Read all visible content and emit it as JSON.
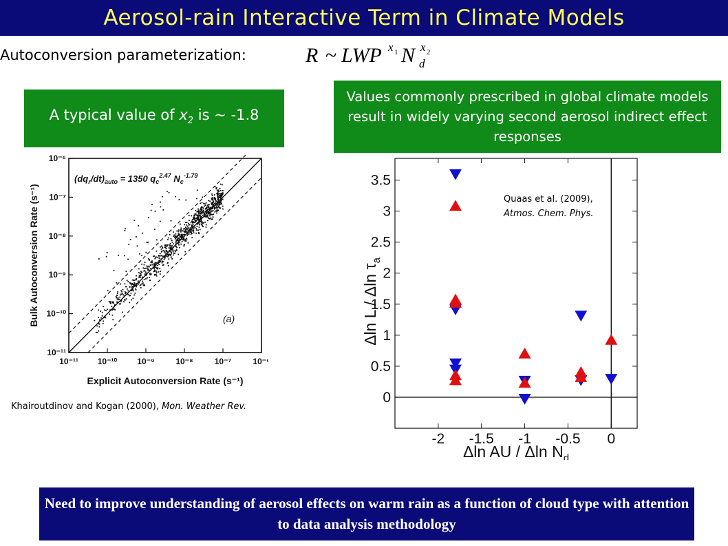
{
  "title": "Aerosol-rain Interactive Term in Climate Models",
  "autoconversion_label": "Autoconversion parameterization:",
  "formula": {
    "lhs": "R",
    "op": "~",
    "lwp": "LWP",
    "x1": "x",
    "x1_sub": "1",
    "n": "N",
    "n_sub": "d",
    "x2": "x",
    "x2_sub": "2"
  },
  "left_box": {
    "text_pre": "A typical value of ",
    "var": "x",
    "sub": "2",
    "text_post": " is ~ -1.8"
  },
  "right_box": {
    "text": "Values commonly prescribed in global climate models result in widely varying second aerosol indirect effect responses"
  },
  "left_caption": {
    "authors": "Khairoutdinov and Kogan (2000), ",
    "journal": "Mon. Weather Rev."
  },
  "quaas": {
    "line1": "Quaas et al. (2009),",
    "line2": "Atmos. Chem. Phys."
  },
  "bottom_text": "Need to improve understanding of aerosol effects on warm rain as a function of cloud type with attention to data analysis methodology",
  "colors": {
    "title_bg": "#0a0a78",
    "title_text": "#ffff55",
    "green": "#108a18",
    "red": "#e01010",
    "blue": "#1010d0"
  },
  "chart_data": [
    {
      "type": "scatter",
      "title": "(dq_r/dt)_auto = 1350 q_c^2.47 N_c^-1.79",
      "panel_label": "(a)",
      "xlabel": "Explicit Autoconversion Rate (s⁻¹)",
      "ylabel": "Bulk Autoconversion Rate (s⁻¹)",
      "xscale": "log",
      "yscale": "log",
      "xlim": [
        1e-11,
        1e-06
      ],
      "ylim": [
        1e-11,
        1e-06
      ],
      "x_ticks": [
        "10⁻¹¹",
        "10⁻¹⁰",
        "10⁻⁹",
        "10⁻⁸",
        "10⁻⁷",
        "10⁻⁶"
      ],
      "y_ticks": [
        "10⁻⁶",
        "10⁻⁷",
        "10⁻⁸",
        "10⁻⁹",
        "10⁻¹⁰",
        "10⁻¹¹"
      ],
      "lines": [
        "1:1 (solid)",
        "factor-of-2 bounds (dashed)"
      ]
    },
    {
      "type": "scatter",
      "xlabel": "Δln AU / Δln N_d",
      "ylabel": "Δln L / Δln τ_a",
      "xlim": [
        -2.5,
        0.3
      ],
      "ylim": [
        -0.5,
        3.85
      ],
      "x_ticks": [
        "-2",
        "-1.5",
        "-1",
        "-0.5",
        "0"
      ],
      "y_ticks": [
        "0",
        "0.5",
        "1",
        "1.5",
        "2",
        "2.5",
        "3",
        "3.5"
      ],
      "series": [
        {
          "marker": "triangle-down",
          "color": "#1010d0",
          "points": [
            [
              -1.8,
              3.6
            ],
            [
              -1.8,
              1.42
            ],
            [
              -1.8,
              0.55
            ],
            [
              -1.8,
              0.45
            ],
            [
              -1.0,
              0.27
            ],
            [
              -1.0,
              -0.02
            ],
            [
              -0.35,
              1.32
            ],
            [
              -0.35,
              0.28
            ],
            [
              0.0,
              0.3
            ]
          ]
        },
        {
          "marker": "triangle-up",
          "color": "#e01010",
          "points": [
            [
              -1.8,
              3.08
            ],
            [
              -1.8,
              1.57
            ],
            [
              -1.8,
              1.52
            ],
            [
              -1.8,
              0.35
            ],
            [
              -1.8,
              0.27
            ],
            [
              -1.0,
              0.7
            ],
            [
              -1.0,
              0.23
            ],
            [
              -0.35,
              0.4
            ],
            [
              -0.35,
              0.32
            ],
            [
              0.0,
              0.92
            ]
          ]
        }
      ]
    }
  ]
}
